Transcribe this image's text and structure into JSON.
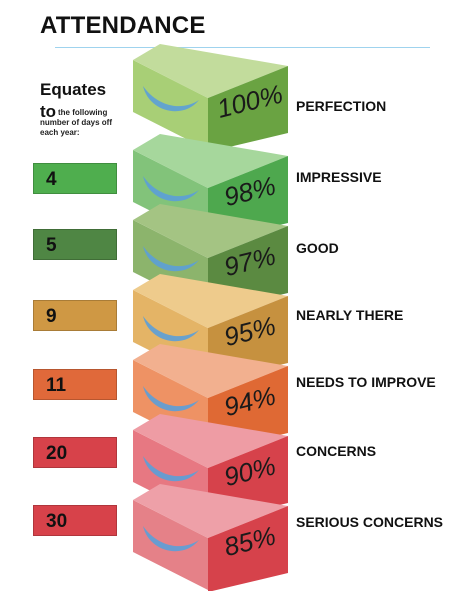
{
  "title": "ATTENDANCE",
  "equates": {
    "heading": "Equates",
    "to": "to",
    "detail_line1": "the following",
    "detail_line2": "number of days off each year:"
  },
  "levels": [
    {
      "percent": "100%",
      "days": "",
      "label": "PERFECTION",
      "top": "#c2dc9c",
      "front": "#a8cf76",
      "side": "#6aa342"
    },
    {
      "percent": "98%",
      "days": "4",
      "label": "IMPRESSIVE",
      "top": "#a6d79c",
      "front": "#82c37a",
      "side": "#4ea84e"
    },
    {
      "percent": "97%",
      "days": "5",
      "label": "GOOD",
      "top": "#a4c483",
      "front": "#8cb46c",
      "side": "#5b8a41"
    },
    {
      "percent": "95%",
      "days": "9",
      "label": "NEARLY THERE",
      "top": "#eecb8c",
      "front": "#e4b466",
      "side": "#c6913f"
    },
    {
      "percent": "94%",
      "days": "11",
      "label": "NEEDS TO IMPROVE",
      "top": "#f2b08f",
      "front": "#ee9264",
      "side": "#df6934"
    },
    {
      "percent": "90%",
      "days": "20",
      "label": "CONCERNS",
      "top": "#ee9ca4",
      "front": "#e77882",
      "side": "#d6424b"
    },
    {
      "percent": "85%",
      "days": "30",
      "label": "SERIOUS CONCERNS",
      "top": "#eea0a8",
      "front": "#e58188",
      "side": "#d6424b"
    }
  ],
  "colors": {
    "daybox": [
      "#4fae4e",
      "#4f8644",
      "#cf9844",
      "#e0693a",
      "#d7424a",
      "#d7424a"
    ],
    "swoosh": "#5b9fd8",
    "rule": "#9fd3ee"
  }
}
